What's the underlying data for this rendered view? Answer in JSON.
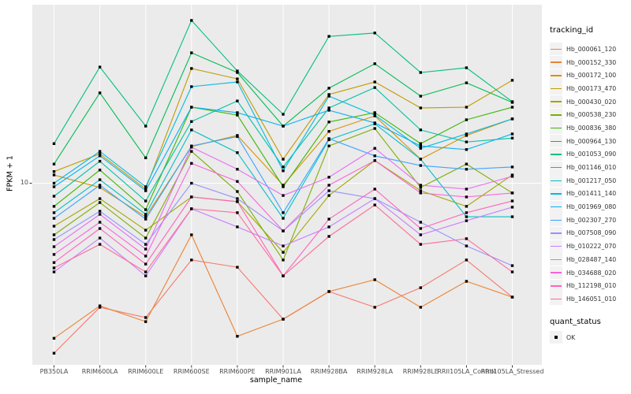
{
  "chart_data": {
    "type": "line",
    "title": "",
    "xlabel": "sample_name",
    "ylabel": "FPKM + 1",
    "yscale": "log10",
    "ytick_labels": [
      {
        "value": 10,
        "label": "10"
      }
    ],
    "grid": "major-white-on-gray",
    "panel_bg": "#EBEBEB",
    "grid_color": "#FFFFFF",
    "tick_color": "#333333",
    "tick_label_color": "#4D4D4D",
    "point": {
      "shape": "square",
      "color": "#000000"
    },
    "categories": [
      "PB350LA",
      "RRIM600LA",
      "RRIM600LE",
      "RRIM600SE",
      "RRIM600PE",
      "RRIM901LA",
      "RRIM928BA",
      "RRIM928LA",
      "RRIM928LE",
      "RRII105LA_Control",
      "RRII105LA_Stressed"
    ],
    "series": [
      {
        "name": "Hb_000061_120",
        "color": "#F8766D",
        "values": [
          1.48,
          2.48,
          2.21,
          4.22,
          3.89,
          2.17,
          2.96,
          2.48,
          3.09,
          4.22,
          2.78
        ]
      },
      {
        "name": "Hb_000152_330",
        "color": "#EA8331",
        "values": [
          1.75,
          2.52,
          2.11,
          5.6,
          1.79,
          2.17,
          2.96,
          3.38,
          2.48,
          3.32,
          2.78
        ]
      },
      {
        "name": "Hb_000172_100",
        "color": "#D89000",
        "values": [
          10.97,
          9.53,
          6.86,
          15.1,
          17.1,
          9.78,
          17.9,
          21.3,
          13.1,
          17.1,
          20.6
        ]
      },
      {
        "name": "Hb_000173_470",
        "color": "#C09B00",
        "values": [
          11.4,
          13.9,
          9.36,
          36.3,
          32.3,
          13.1,
          27.1,
          31.2,
          23.3,
          23.5,
          31.8
        ]
      },
      {
        "name": "Hb_000430_020",
        "color": "#A3A500",
        "values": [
          6.17,
          8.41,
          5.9,
          8.57,
          8.13,
          4.6,
          8.71,
          12.9,
          9.19,
          7.71,
          10.97
        ]
      },
      {
        "name": "Hb_000538_230",
        "color": "#7CAE00",
        "values": [
          5.6,
          8.05,
          5.4,
          14.3,
          9.11,
          4.22,
          15.2,
          18.5,
          9.53,
          12.4,
          8.96
        ]
      },
      {
        "name": "Hb_000836_380",
        "color": "#39B600",
        "values": [
          7.71,
          11.6,
          7.43,
          23.5,
          21.5,
          9.61,
          19.9,
          22.1,
          15.6,
          20.4,
          23.5
        ]
      },
      {
        "name": "Hb_000964_130",
        "color": "#00BB4E",
        "values": [
          12.4,
          27.6,
          13.3,
          43.3,
          34.7,
          19.0,
          29.1,
          38.3,
          26.6,
          30.9,
          24.8
        ]
      },
      {
        "name": "Hb_001053_090",
        "color": "#00BF7D",
        "values": [
          15.6,
          36.9,
          19.0,
          62.3,
          35.3,
          21.7,
          52.1,
          54.1,
          34.7,
          36.6,
          25.0
        ]
      },
      {
        "name": "Hb_001146_010",
        "color": "#00C1A3",
        "values": [
          8.64,
          12.8,
          8.19,
          20.0,
          25.2,
          12.0,
          23.3,
          29.3,
          18.2,
          15.9,
          16.6
        ]
      },
      {
        "name": "Hb_001217_050",
        "color": "#00BFC4",
        "values": [
          7.18,
          10.4,
          7.05,
          18.2,
          14.1,
          6.74,
          16.3,
          19.5,
          13.1,
          6.86,
          6.86
        ]
      },
      {
        "name": "Hb_001411_140",
        "color": "#00BAE0",
        "values": [
          10.0,
          14.3,
          9.61,
          29.6,
          31.2,
          11.5,
          26.6,
          21.5,
          14.8,
          17.4,
          20.6
        ]
      },
      {
        "name": "Hb_001969_080",
        "color": "#00B0F6",
        "values": [
          9.61,
          13.6,
          9.19,
          23.5,
          22.1,
          19.0,
          22.7,
          19.7,
          15.2,
          14.6,
          17.4
        ]
      },
      {
        "name": "Hb_002307_270",
        "color": "#35A2FF",
        "values": [
          6.74,
          9.78,
          6.68,
          15.2,
          16.9,
          7.18,
          16.5,
          13.6,
          12.2,
          11.7,
          12.0
        ]
      },
      {
        "name": "Hb_007508_090",
        "color": "#9590FF",
        "values": [
          5.31,
          7.3,
          5.03,
          10.0,
          8.41,
          5.85,
          9.19,
          8.41,
          6.45,
          4.94,
          3.96
        ]
      },
      {
        "name": "Hb_010222_070",
        "color": "#C77CFF",
        "values": [
          3.69,
          5.4,
          3.53,
          7.5,
          6.12,
          4.94,
          6.12,
          8.41,
          5.6,
          6.56,
          7.64
        ]
      },
      {
        "name": "Hb_028487_140",
        "color": "#E76BF3",
        "values": [
          4.9,
          7.05,
          4.77,
          15.0,
          11.7,
          8.71,
          10.7,
          14.8,
          9.78,
          9.36,
          10.8
        ]
      },
      {
        "name": "Hb_034688_020",
        "color": "#FA62DB",
        "values": [
          4.49,
          6.45,
          4.41,
          12.5,
          10.2,
          5.85,
          9.78,
          12.9,
          8.96,
          8.57,
          8.96
        ]
      },
      {
        "name": "Hb_112198_010",
        "color": "#FF62BC",
        "values": [
          4.1,
          6.01,
          4.03,
          8.57,
          8.13,
          3.53,
          6.68,
          9.36,
          6.01,
          7.18,
          8.19
        ]
      },
      {
        "name": "Hb_146051_010",
        "color": "#FF6A98",
        "values": [
          3.86,
          5.03,
          3.69,
          7.5,
          7.18,
          3.53,
          5.5,
          7.83,
          5.03,
          5.36,
          3.69
        ]
      }
    ],
    "legend": {
      "title": "tracking_id"
    },
    "legend2": {
      "title": "quant_status",
      "items": [
        {
          "label": "OK",
          "shape": "square",
          "color": "#000000"
        }
      ]
    }
  }
}
